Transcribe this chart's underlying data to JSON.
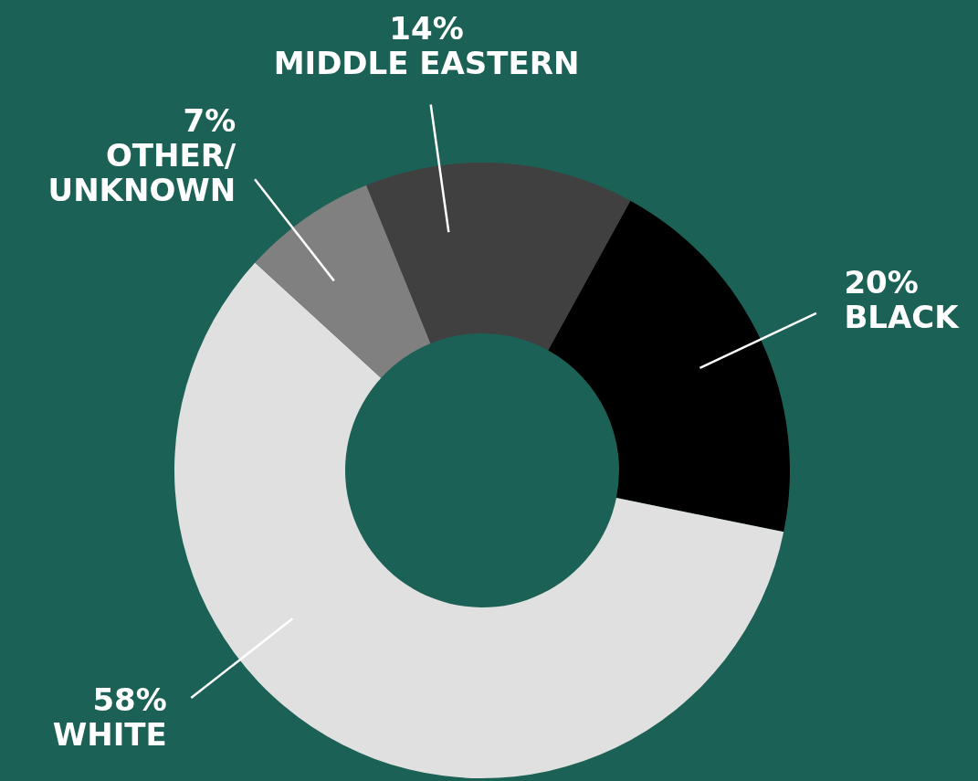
{
  "chart_data": {
    "type": "donut",
    "categories": [
      "BLACK",
      "WHITE",
      "OTHER/UNKNOWN",
      "MIDDLE EASTERN"
    ],
    "values": [
      20,
      58,
      7,
      14
    ],
    "value_labels": [
      "20%",
      "58%",
      "7%",
      "14%"
    ],
    "colors": [
      "#000000",
      "#e0e0e0",
      "#808080",
      "#404040"
    ],
    "legend": false
  }
}
